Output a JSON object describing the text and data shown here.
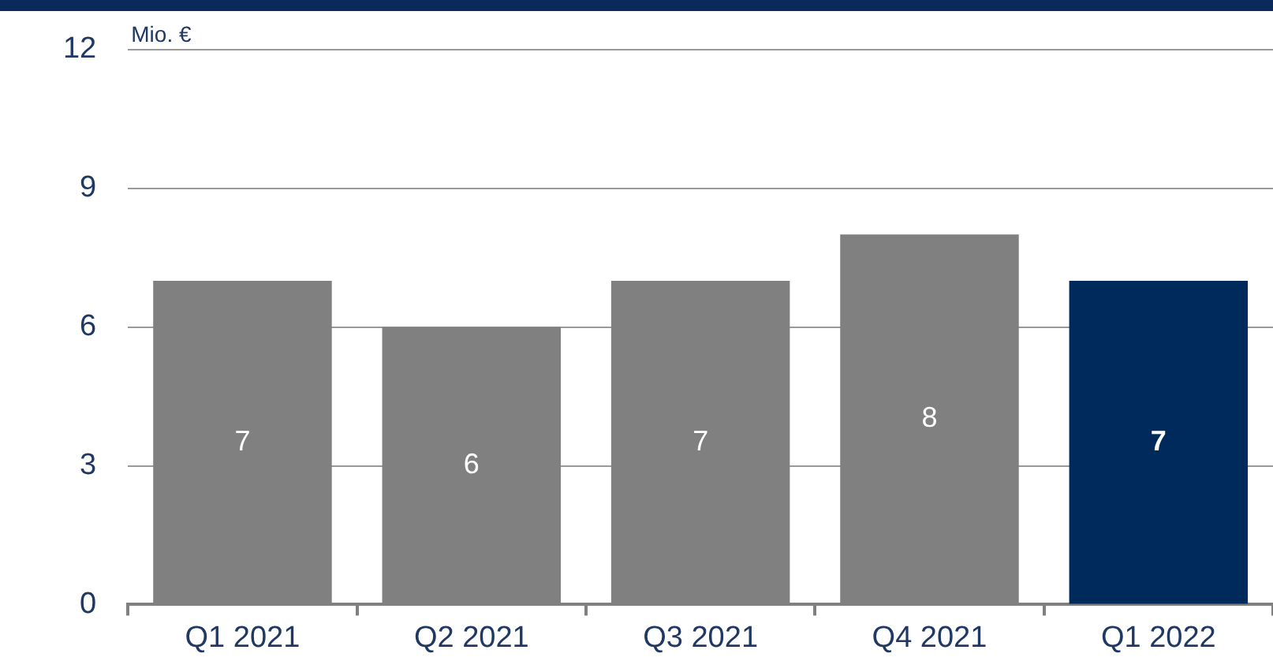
{
  "chart_data": {
    "type": "bar",
    "ylabel": "Mio. €",
    "categories": [
      "Q1 2021",
      "Q2 2021",
      "Q3 2021",
      "Q4 2021",
      "Q1 2022"
    ],
    "values": [
      7,
      6,
      7,
      8,
      7
    ],
    "colors": [
      "#808080",
      "#808080",
      "#808080",
      "#808080",
      "#002a5c"
    ],
    "ylim": [
      0,
      12
    ],
    "yticks": [
      0,
      3,
      6,
      9,
      12
    ],
    "grid": "y",
    "data_labels": true,
    "legend": false
  }
}
